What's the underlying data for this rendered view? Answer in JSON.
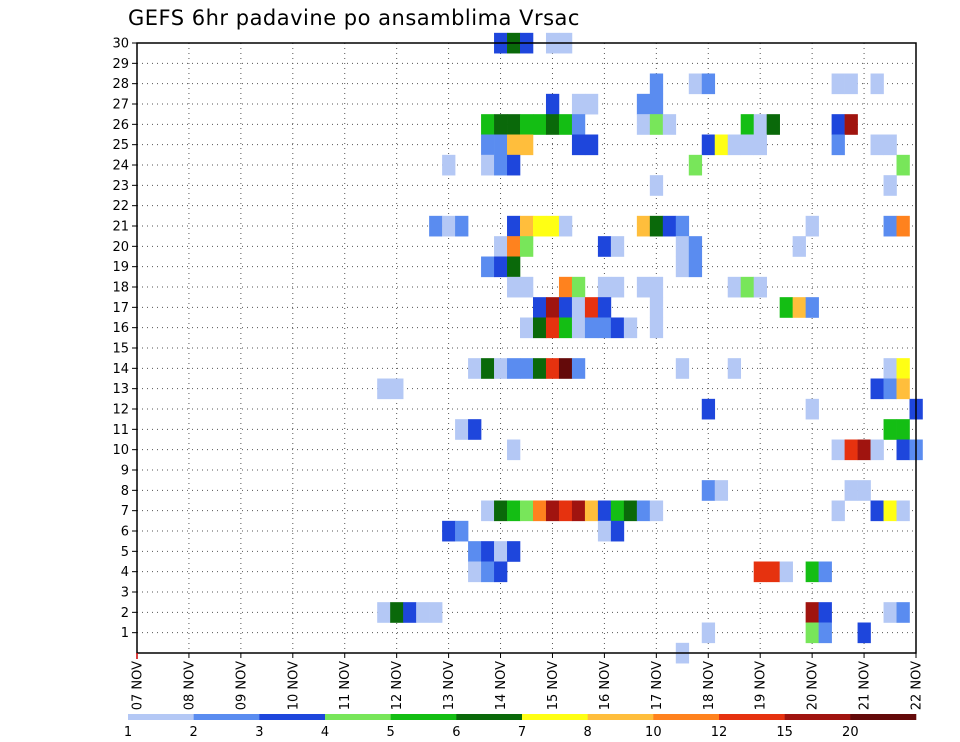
{
  "title": "GEFS 6hr padavine po ansamblima Vrsac",
  "chart_data": {
    "type": "heatmap",
    "title": "GEFS 6hr padavine po ansamblima Vrsac",
    "xlabel": "",
    "ylabel": "",
    "x_tick_labels": [
      "07 NOV",
      "08 NOV",
      "09 NOV",
      "10 NOV",
      "11 NOV",
      "12 NOV",
      "13 NOV",
      "14 NOV",
      "15 NOV",
      "16 NOV",
      "17 NOV",
      "18 NOV",
      "19 NOV",
      "20 NOV",
      "21 NOV",
      "22 NOV"
    ],
    "x_range_days": [
      7,
      22
    ],
    "x_step_hours": 6,
    "y_tick_labels": [
      "1",
      "2",
      "3",
      "4",
      "5",
      "6",
      "7",
      "8",
      "9",
      "10",
      "11",
      "12",
      "13",
      "14",
      "15",
      "16",
      "17",
      "18",
      "19",
      "20",
      "21",
      "22",
      "23",
      "24",
      "25",
      "26",
      "27",
      "28",
      "29",
      "30"
    ],
    "y_range": [
      0,
      30
    ],
    "grid": true,
    "legend": {
      "placement": "bottom",
      "labels": [
        "1",
        "2",
        "3",
        "4",
        "5",
        "6",
        "7",
        "8",
        "10",
        "12",
        "15",
        "20"
      ],
      "colors": [
        "#b4c8f5",
        "#5a8cf0",
        "#1e46dc",
        "#78e65a",
        "#14be14",
        "#0a690a",
        "#ffff14",
        "#ffbe3c",
        "#ff821e",
        "#e6320f",
        "#a0140f",
        "#640a0a"
      ]
    },
    "color_classes_mm": [
      "1-2",
      "2-3",
      "3-4",
      "4-5",
      "5-6",
      "6-7",
      "7-8",
      "8-10",
      "10-12",
      "12-15",
      "15-20",
      ">20"
    ],
    "cells_format": [
      "day",
      "hour",
      "member",
      "class"
    ],
    "cells": [
      [
        14,
        0,
        30,
        2
      ],
      [
        14,
        6,
        30,
        5
      ],
      [
        14,
        12,
        30,
        2
      ],
      [
        15,
        0,
        30,
        0
      ],
      [
        15,
        6,
        30,
        0
      ],
      [
        17,
        0,
        28,
        1
      ],
      [
        17,
        18,
        28,
        0
      ],
      [
        18,
        0,
        28,
        1
      ],
      [
        20,
        12,
        28,
        0
      ],
      [
        20,
        18,
        28,
        0
      ],
      [
        21,
        6,
        28,
        0
      ],
      [
        15,
        0,
        27,
        2
      ],
      [
        15,
        12,
        27,
        0
      ],
      [
        15,
        18,
        27,
        0
      ],
      [
        16,
        18,
        27,
        1
      ],
      [
        17,
        0,
        27,
        1
      ],
      [
        13,
        18,
        26,
        4
      ],
      [
        14,
        0,
        26,
        5
      ],
      [
        14,
        6,
        26,
        5
      ],
      [
        14,
        12,
        26,
        4
      ],
      [
        14,
        18,
        26,
        4
      ],
      [
        15,
        0,
        26,
        5
      ],
      [
        15,
        6,
        26,
        4
      ],
      [
        15,
        12,
        26,
        1
      ],
      [
        16,
        18,
        26,
        0
      ],
      [
        17,
        0,
        26,
        3
      ],
      [
        17,
        6,
        26,
        0
      ],
      [
        18,
        18,
        26,
        4
      ],
      [
        19,
        0,
        26,
        0
      ],
      [
        19,
        6,
        26,
        5
      ],
      [
        20,
        12,
        26,
        2
      ],
      [
        20,
        18,
        26,
        10
      ],
      [
        13,
        18,
        25,
        1
      ],
      [
        14,
        0,
        25,
        1
      ],
      [
        14,
        6,
        25,
        7
      ],
      [
        14,
        12,
        25,
        7
      ],
      [
        15,
        12,
        25,
        2
      ],
      [
        15,
        18,
        25,
        2
      ],
      [
        18,
        0,
        25,
        2
      ],
      [
        18,
        6,
        25,
        6
      ],
      [
        18,
        12,
        25,
        0
      ],
      [
        18,
        18,
        25,
        0
      ],
      [
        19,
        0,
        25,
        0
      ],
      [
        20,
        12,
        25,
        1
      ],
      [
        21,
        6,
        25,
        0
      ],
      [
        21,
        12,
        25,
        0
      ],
      [
        13,
        0,
        24,
        0
      ],
      [
        13,
        18,
        24,
        0
      ],
      [
        14,
        0,
        24,
        1
      ],
      [
        14,
        6,
        24,
        2
      ],
      [
        17,
        18,
        24,
        3
      ],
      [
        21,
        18,
        24,
        3
      ],
      [
        17,
        0,
        23,
        0
      ],
      [
        21,
        12,
        23,
        0
      ],
      [
        12,
        18,
        21,
        1
      ],
      [
        13,
        0,
        21,
        0
      ],
      [
        13,
        6,
        21,
        1
      ],
      [
        14,
        6,
        21,
        2
      ],
      [
        14,
        12,
        21,
        7
      ],
      [
        14,
        18,
        21,
        6
      ],
      [
        15,
        0,
        21,
        6
      ],
      [
        15,
        6,
        21,
        0
      ],
      [
        16,
        18,
        21,
        7
      ],
      [
        17,
        0,
        21,
        5
      ],
      [
        17,
        6,
        21,
        2
      ],
      [
        17,
        12,
        21,
        1
      ],
      [
        20,
        0,
        21,
        0
      ],
      [
        21,
        12,
        21,
        1
      ],
      [
        21,
        18,
        21,
        8
      ],
      [
        14,
        0,
        20,
        0
      ],
      [
        14,
        6,
        20,
        8
      ],
      [
        14,
        12,
        20,
        3
      ],
      [
        16,
        0,
        20,
        2
      ],
      [
        16,
        6,
        20,
        0
      ],
      [
        17,
        12,
        20,
        0
      ],
      [
        17,
        18,
        20,
        1
      ],
      [
        19,
        18,
        20,
        0
      ],
      [
        13,
        18,
        19,
        1
      ],
      [
        14,
        0,
        19,
        2
      ],
      [
        14,
        6,
        19,
        5
      ],
      [
        17,
        12,
        19,
        0
      ],
      [
        17,
        18,
        19,
        1
      ],
      [
        14,
        6,
        18,
        0
      ],
      [
        14,
        12,
        18,
        0
      ],
      [
        15,
        6,
        18,
        8
      ],
      [
        15,
        12,
        18,
        3
      ],
      [
        16,
        0,
        18,
        0
      ],
      [
        16,
        6,
        18,
        0
      ],
      [
        16,
        18,
        18,
        0
      ],
      [
        17,
        0,
        18,
        0
      ],
      [
        18,
        12,
        18,
        0
      ],
      [
        18,
        18,
        18,
        3
      ],
      [
        19,
        0,
        18,
        0
      ],
      [
        14,
        18,
        17,
        2
      ],
      [
        15,
        0,
        17,
        10
      ],
      [
        15,
        6,
        17,
        2
      ],
      [
        15,
        12,
        17,
        0
      ],
      [
        15,
        18,
        17,
        9
      ],
      [
        16,
        0,
        17,
        2
      ],
      [
        17,
        0,
        17,
        0
      ],
      [
        19,
        12,
        17,
        4
      ],
      [
        19,
        18,
        17,
        7
      ],
      [
        20,
        0,
        17,
        1
      ],
      [
        14,
        12,
        16,
        0
      ],
      [
        14,
        18,
        16,
        5
      ],
      [
        15,
        0,
        16,
        9
      ],
      [
        15,
        6,
        16,
        4
      ],
      [
        15,
        12,
        16,
        0
      ],
      [
        15,
        18,
        16,
        1
      ],
      [
        16,
        0,
        16,
        1
      ],
      [
        16,
        6,
        16,
        2
      ],
      [
        16,
        12,
        16,
        0
      ],
      [
        17,
        0,
        16,
        0
      ],
      [
        13,
        12,
        14,
        0
      ],
      [
        13,
        18,
        14,
        5
      ],
      [
        14,
        0,
        14,
        0
      ],
      [
        14,
        6,
        14,
        1
      ],
      [
        14,
        12,
        14,
        1
      ],
      [
        14,
        18,
        14,
        5
      ],
      [
        15,
        0,
        14,
        9
      ],
      [
        15,
        6,
        14,
        11
      ],
      [
        15,
        12,
        14,
        1
      ],
      [
        17,
        12,
        14,
        0
      ],
      [
        18,
        12,
        14,
        0
      ],
      [
        21,
        12,
        14,
        0
      ],
      [
        21,
        18,
        14,
        6
      ],
      [
        11,
        18,
        13,
        0
      ],
      [
        12,
        0,
        13,
        0
      ],
      [
        21,
        6,
        13,
        2
      ],
      [
        21,
        12,
        13,
        1
      ],
      [
        21,
        18,
        13,
        7
      ],
      [
        18,
        0,
        12,
        2
      ],
      [
        20,
        0,
        12,
        0
      ],
      [
        22,
        0,
        12,
        2
      ],
      [
        13,
        6,
        11,
        0
      ],
      [
        13,
        12,
        11,
        2
      ],
      [
        21,
        12,
        11,
        4
      ],
      [
        21,
        18,
        11,
        4
      ],
      [
        14,
        6,
        10,
        0
      ],
      [
        20,
        12,
        10,
        0
      ],
      [
        20,
        18,
        10,
        9
      ],
      [
        21,
        0,
        10,
        10
      ],
      [
        21,
        6,
        10,
        0
      ],
      [
        21,
        18,
        10,
        2
      ],
      [
        22,
        0,
        10,
        1
      ],
      [
        18,
        0,
        8,
        1
      ],
      [
        18,
        6,
        8,
        0
      ],
      [
        20,
        18,
        8,
        0
      ],
      [
        21,
        0,
        8,
        0
      ],
      [
        13,
        18,
        7,
        0
      ],
      [
        14,
        0,
        7,
        5
      ],
      [
        14,
        6,
        7,
        4
      ],
      [
        14,
        12,
        7,
        3
      ],
      [
        14,
        18,
        7,
        8
      ],
      [
        15,
        0,
        7,
        10
      ],
      [
        15,
        6,
        7,
        9
      ],
      [
        15,
        12,
        7,
        10
      ],
      [
        15,
        18,
        7,
        7
      ],
      [
        16,
        0,
        7,
        2
      ],
      [
        16,
        6,
        7,
        4
      ],
      [
        16,
        12,
        7,
        5
      ],
      [
        16,
        18,
        7,
        1
      ],
      [
        17,
        0,
        7,
        0
      ],
      [
        20,
        12,
        7,
        0
      ],
      [
        21,
        6,
        7,
        2
      ],
      [
        21,
        12,
        7,
        6
      ],
      [
        21,
        18,
        7,
        0
      ],
      [
        13,
        0,
        6,
        2
      ],
      [
        13,
        6,
        6,
        1
      ],
      [
        16,
        0,
        6,
        0
      ],
      [
        16,
        6,
        6,
        2
      ],
      [
        13,
        12,
        5,
        1
      ],
      [
        13,
        18,
        5,
        2
      ],
      [
        14,
        0,
        5,
        0
      ],
      [
        14,
        6,
        5,
        2
      ],
      [
        13,
        12,
        4,
        0
      ],
      [
        13,
        18,
        4,
        1
      ],
      [
        14,
        0,
        4,
        2
      ],
      [
        19,
        0,
        4,
        9
      ],
      [
        19,
        6,
        4,
        9
      ],
      [
        19,
        12,
        4,
        0
      ],
      [
        20,
        0,
        4,
        4
      ],
      [
        20,
        6,
        4,
        1
      ],
      [
        11,
        18,
        2,
        0
      ],
      [
        12,
        0,
        2,
        5
      ],
      [
        12,
        6,
        2,
        2
      ],
      [
        12,
        12,
        2,
        0
      ],
      [
        12,
        18,
        2,
        0
      ],
      [
        20,
        0,
        2,
        10
      ],
      [
        20,
        6,
        2,
        2
      ],
      [
        21,
        12,
        2,
        0
      ],
      [
        21,
        18,
        2,
        1
      ],
      [
        18,
        0,
        1,
        0
      ],
      [
        20,
        0,
        1,
        3
      ],
      [
        20,
        6,
        1,
        1
      ],
      [
        21,
        0,
        1,
        2
      ],
      [
        17,
        12,
        0,
        0
      ]
    ]
  }
}
